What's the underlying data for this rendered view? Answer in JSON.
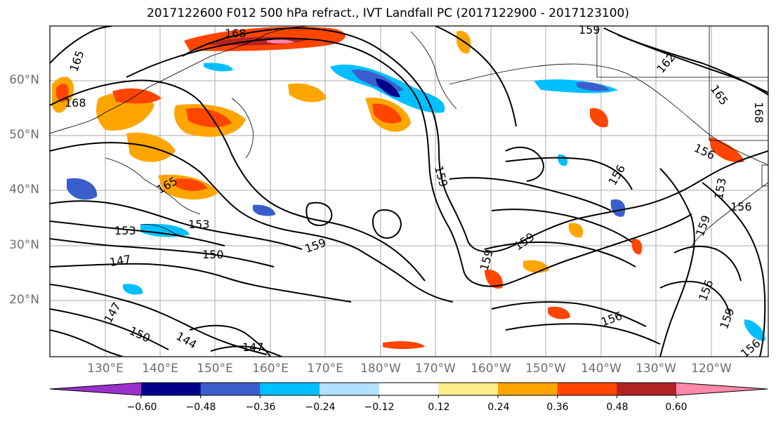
{
  "title": "2017122600 F012 500 hPa refract., IVT Landfall PC (2017122900 - 2017123100)",
  "lat_labels": [
    "60°N",
    "50°N",
    "40°N",
    "30°N",
    "20°N"
  ],
  "lon_labels": [
    "130°E",
    "140°E",
    "150°E",
    "160°E",
    "170°E",
    "180°W",
    "170°W",
    "160°W",
    "150°W",
    "140°W",
    "130°W",
    "120°W"
  ],
  "contour_labels": [
    "168",
    "165",
    "168",
    "165",
    "159",
    "162",
    "165",
    "168",
    "159",
    "156",
    "156",
    "153",
    "156",
    "159",
    "159",
    "153",
    "153",
    "150",
    "147",
    "147",
    "150",
    "144",
    "147",
    "159",
    "159",
    "156",
    "159",
    "156",
    "156"
  ],
  "colorbar": {
    "levels": [
      -0.6,
      -0.48,
      -0.36,
      -0.24,
      -0.12,
      0.12,
      0.24,
      0.36,
      0.48,
      0.6
    ],
    "tick_labels": [
      "−0.60",
      "−0.48",
      "−0.36",
      "−0.24",
      "−0.12",
      "0.12",
      "0.24",
      "0.36",
      "0.48",
      "0.60"
    ],
    "colors": [
      "#9932cc",
      "#00008b",
      "#3a5fcd",
      "#00bfff",
      "#b0e2ff",
      "#ffffff",
      "#ffec8b",
      "#ffa500",
      "#ff4500",
      "#b22222",
      "#ff88aa"
    ]
  },
  "map": {
    "lon_range": [
      "120°E",
      "115°W"
    ],
    "lat_range": [
      "10°N",
      "70°N"
    ],
    "grid": true
  }
}
